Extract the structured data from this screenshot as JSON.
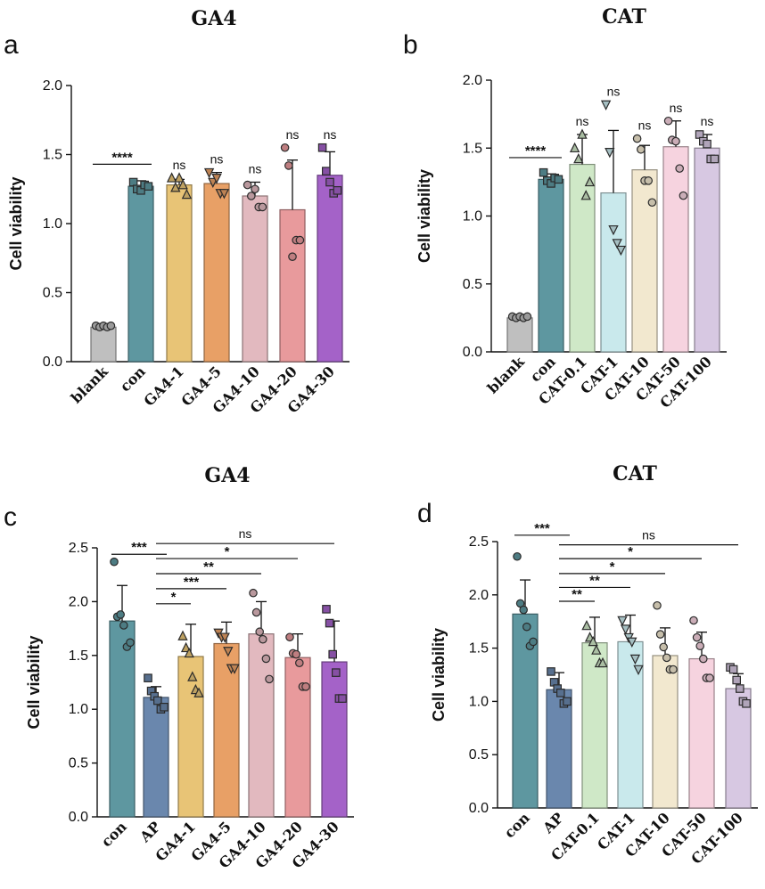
{
  "chart_data": [
    {
      "panel": "a",
      "type": "bar",
      "title": "GA4",
      "ylabel": "Cell viability",
      "ylim": [
        0,
        2.0
      ],
      "yticks": [
        0.0,
        0.5,
        1.0,
        1.5,
        2.0
      ],
      "yticklabels": [
        "0.0",
        "0.5",
        "1.0",
        "1.5",
        "2.0"
      ],
      "categories": [
        "blank",
        "con",
        "GA4-1",
        "GA4-5",
        "GA4-10",
        "GA4-20",
        "GA4-30"
      ],
      "values": [
        0.25,
        1.27,
        1.28,
        1.29,
        1.2,
        1.1,
        1.35
      ],
      "errors": [
        0.01,
        0.04,
        0.04,
        0.08,
        0.1,
        0.36,
        0.17
      ],
      "colors": [
        "#bfbfbf",
        "#5e97a0",
        "#e8c476",
        "#e8a066",
        "#e2b9bf",
        "#e89a9c",
        "#a462c8"
      ],
      "points": [
        [
          0.26,
          0.25,
          0.26,
          0.25,
          0.26
        ],
        [
          1.3,
          1.25,
          1.24,
          1.28,
          1.27
        ],
        [
          1.33,
          1.26,
          1.33,
          1.28,
          1.21
        ],
        [
          1.37,
          1.3,
          1.33,
          1.22,
          1.22
        ],
        [
          1.28,
          1.2,
          1.25,
          1.12,
          1.12
        ],
        [
          1.55,
          1.42,
          0.76,
          0.88,
          0.88
        ],
        [
          1.55,
          1.38,
          1.3,
          1.22,
          1.24
        ]
      ],
      "markers": [
        "circle",
        "square",
        "triangle",
        "triangle-down",
        "circle",
        "circle",
        "square"
      ],
      "significance": [
        {
          "from": 0,
          "to": 1,
          "label": "****",
          "y": 1.43
        }
      ],
      "bar_labels": [
        "",
        "",
        "ns",
        "ns",
        "ns",
        "ns",
        "ns"
      ]
    },
    {
      "panel": "b",
      "type": "bar",
      "title": "CAT",
      "ylabel": "Cell viability",
      "ylim": [
        0,
        2.0
      ],
      "yticks": [
        0.0,
        0.5,
        1.0,
        1.5,
        2.0
      ],
      "yticklabels": [
        "0.0",
        "0.5",
        "1.0",
        "1.5",
        "2.0"
      ],
      "categories": [
        "blank",
        "con",
        "CAT-0.1",
        "CAT-1",
        "CAT-10",
        "CAT-50",
        "CAT-100"
      ],
      "values": [
        0.25,
        1.27,
        1.38,
        1.17,
        1.34,
        1.51,
        1.5
      ],
      "errors": [
        0.01,
        0.04,
        0.22,
        0.46,
        0.18,
        0.19,
        0.1
      ],
      "colors": [
        "#bfbfbf",
        "#5e97a0",
        "#cfe8c7",
        "#c9e9ec",
        "#f2e8cf",
        "#f6d3df",
        "#d7c8e2"
      ],
      "points": [
        [
          0.26,
          0.25,
          0.26,
          0.25,
          0.26
        ],
        [
          1.32,
          1.26,
          1.24,
          1.28,
          1.27
        ],
        [
          1.5,
          1.42,
          1.6,
          1.15,
          1.25
        ],
        [
          1.82,
          1.47,
          0.9,
          0.8,
          0.75
        ],
        [
          1.57,
          1.49,
          1.26,
          1.26,
          1.1
        ],
        [
          1.7,
          1.56,
          1.55,
          1.35,
          1.15
        ],
        [
          1.6,
          1.55,
          1.53,
          1.42,
          1.42
        ]
      ],
      "markers": [
        "circle",
        "square",
        "triangle",
        "triangle-down",
        "circle",
        "circle",
        "square"
      ],
      "significance": [
        {
          "from": 0,
          "to": 1,
          "label": "****",
          "y": 1.43
        }
      ],
      "bar_labels": [
        "",
        "",
        "ns",
        "ns",
        "ns",
        "ns",
        "ns"
      ]
    },
    {
      "panel": "c",
      "type": "bar",
      "title": "GA4",
      "ylabel": "Cell viability",
      "ylim": [
        0,
        2.5
      ],
      "yticks": [
        0.0,
        0.5,
        1.0,
        1.5,
        2.0,
        2.5
      ],
      "yticklabels": [
        "0.0",
        "0.5",
        "1.0",
        "1.5",
        "2.0",
        "2.5"
      ],
      "categories": [
        "con",
        "AP",
        "GA4-1",
        "GA4-5",
        "GA4-10",
        "GA4-20",
        "GA4-30"
      ],
      "values": [
        1.82,
        1.11,
        1.49,
        1.61,
        1.7,
        1.48,
        1.44
      ],
      "errors": [
        0.33,
        0.1,
        0.3,
        0.2,
        0.3,
        0.22,
        0.38
      ],
      "colors": [
        "#5e97a0",
        "#6a87ad",
        "#e8c476",
        "#e8a066",
        "#e2b9bf",
        "#e89a9c",
        "#a462c8"
      ],
      "points": [
        [
          2.37,
          1.86,
          1.88,
          1.78,
          1.58,
          1.62
        ],
        [
          1.29,
          1.17,
          1.12,
          1.08,
          1.0,
          1.02
        ],
        [
          1.68,
          1.57,
          1.52,
          1.3,
          1.18,
          1.15
        ],
        [
          1.71,
          1.67,
          1.67,
          1.54,
          1.38,
          1.38
        ],
        [
          2.08,
          1.9,
          1.72,
          1.65,
          1.47,
          1.28
        ],
        [
          1.67,
          1.52,
          1.51,
          1.43,
          1.21,
          1.21
        ],
        [
          1.93,
          1.8,
          1.51,
          1.34,
          1.1,
          1.1
        ]
      ],
      "markers": [
        "circle",
        "square",
        "triangle",
        "triangle-down",
        "circle",
        "circle",
        "square"
      ],
      "significance": [
        {
          "from": 0,
          "to": 1,
          "label": "***",
          "y": 2.44
        },
        {
          "from": 1,
          "to": 2,
          "label": "*",
          "y": 1.98
        },
        {
          "from": 1,
          "to": 3,
          "label": "***",
          "y": 2.12
        },
        {
          "from": 1,
          "to": 4,
          "label": "**",
          "y": 2.26
        },
        {
          "from": 1,
          "to": 5,
          "label": "*",
          "y": 2.4
        },
        {
          "from": 1,
          "to": 6,
          "label": "ns",
          "y": 2.54
        }
      ],
      "bar_labels": [
        "",
        "",
        "",
        "",
        "",
        "",
        ""
      ]
    },
    {
      "panel": "d",
      "type": "bar",
      "title": "CAT",
      "ylabel": "Cell viability",
      "ylim": [
        0,
        2.5
      ],
      "yticks": [
        0.0,
        0.5,
        1.0,
        1.5,
        2.0,
        2.5
      ],
      "yticklabels": [
        "0.0",
        "0.5",
        "1.0",
        "1.5",
        "2.0",
        "2.5"
      ],
      "categories": [
        "con",
        "AP",
        "CAT-0.1",
        "CAT-1",
        "CAT-10",
        "CAT-50",
        "CAT-100"
      ],
      "values": [
        1.82,
        1.11,
        1.55,
        1.56,
        1.43,
        1.4,
        1.12
      ],
      "errors": [
        0.32,
        0.16,
        0.24,
        0.25,
        0.26,
        0.25,
        0.14
      ],
      "colors": [
        "#5e97a0",
        "#6a87ad",
        "#cfe8c7",
        "#c9e9ec",
        "#f2e8cf",
        "#f6d3df",
        "#d7c8e2"
      ],
      "points": [
        [
          2.36,
          1.92,
          1.86,
          1.7,
          1.52,
          1.56
        ],
        [
          1.28,
          1.18,
          1.12,
          1.08,
          0.98,
          1.0
        ],
        [
          1.71,
          1.6,
          1.56,
          1.48,
          1.36,
          1.36
        ],
        [
          1.76,
          1.68,
          1.6,
          1.56,
          1.4,
          1.3
        ],
        [
          1.9,
          1.63,
          1.51,
          1.41,
          1.3,
          1.3
        ],
        [
          1.76,
          1.6,
          1.52,
          1.4,
          1.22,
          1.22
        ],
        [
          1.32,
          1.3,
          1.2,
          1.12,
          1.0,
          0.98
        ]
      ],
      "markers": [
        "circle",
        "square",
        "triangle",
        "triangle-down",
        "circle",
        "circle",
        "square"
      ],
      "significance": [
        {
          "from": 0,
          "to": 1,
          "label": "***",
          "y": 2.56
        },
        {
          "from": 1,
          "to": 2,
          "label": "**",
          "y": 1.94
        },
        {
          "from": 1,
          "to": 3,
          "label": "**",
          "y": 2.07
        },
        {
          "from": 1,
          "to": 4,
          "label": "*",
          "y": 2.2
        },
        {
          "from": 1,
          "to": 5,
          "label": "*",
          "y": 2.34
        },
        {
          "from": 1,
          "to": 6,
          "label": "ns",
          "y": 2.47
        }
      ],
      "bar_labels": [
        "",
        "",
        "",
        "",
        "",
        "",
        ""
      ]
    }
  ]
}
